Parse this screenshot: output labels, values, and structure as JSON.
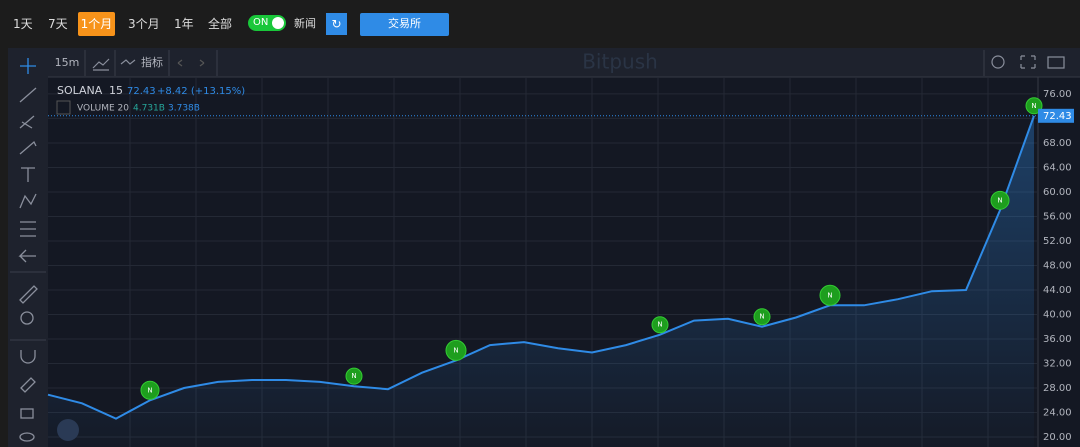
{
  "toolbar": {
    "ranges": [
      "1天",
      "7天",
      "1个月",
      "3个月",
      "1年",
      "全部"
    ],
    "toggle": "ON",
    "news": "新闻",
    "exchange": "交易所"
  },
  "chart_toolbar": {
    "interval": "15m",
    "indicators": "指标",
    "watermark": "Bitpush"
  },
  "legend": {
    "symbol": "SOLANA",
    "interval": "15",
    "price": "72.43",
    "change": "+8.42 (+13.15%)",
    "volume": "VOLUME 20",
    "volume_value_1": "4.731B",
    "volume_value_2": "3.738B"
  },
  "news_marker": "N",
  "chart_data": {
    "type": "line",
    "color": "#2f8be6",
    "values": [
      26.9,
      25.5,
      23,
      26,
      28,
      29,
      29.3,
      29.3,
      29,
      28.3,
      27.8,
      30.5,
      32.5,
      35,
      35.5,
      34.5,
      33.8,
      35,
      36.7,
      39,
      39.3,
      38,
      39.5,
      41.5,
      41.5,
      42.5,
      43.8,
      44,
      57,
      72.43
    ],
    "last_value": 72.43,
    "ylim": [
      18.37,
      78.6
    ],
    "yticks": [
      {
        "value": 20,
        "label": "20.00"
      },
      {
        "value": 24,
        "label": "24.00"
      },
      {
        "value": 28,
        "label": "28.00"
      },
      {
        "value": 32,
        "label": "32.00"
      },
      {
        "value": 36,
        "label": "36.00"
      },
      {
        "value": 40,
        "label": "40.00"
      },
      {
        "value": 44,
        "label": "44.00"
      },
      {
        "value": 48,
        "label": "48.00"
      },
      {
        "value": 52,
        "label": "52.00"
      },
      {
        "value": 56,
        "label": "56.00"
      },
      {
        "value": 60,
        "label": "60.00"
      },
      {
        "value": 64,
        "label": "64.00"
      },
      {
        "value": 68,
        "label": "68.00"
      },
      {
        "value": 72,
        "label": "72.00"
      },
      {
        "value": 76,
        "label": "76.00"
      }
    ],
    "grid": true
  }
}
